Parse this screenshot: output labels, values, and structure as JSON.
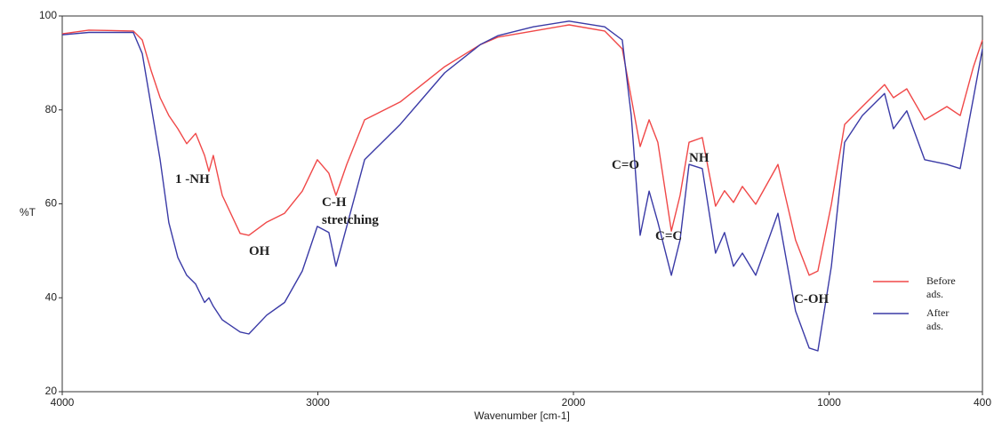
{
  "chart_data": {
    "type": "line",
    "x_label": "Wavenumber [cm-1]",
    "y_label": "%T",
    "x": [
      4000,
      3896,
      3722,
      3687,
      3652,
      3617,
      3583,
      3548,
      3513,
      3478,
      3443,
      3426,
      3409,
      3374,
      3304,
      3270,
      3200,
      3130,
      3061,
      3002,
      2957,
      2929,
      2887,
      2817,
      2678,
      2504,
      2365,
      2296,
      2157,
      2017,
      1878,
      1809,
      1774,
      1739,
      1704,
      1670,
      1617,
      1583,
      1548,
      1496,
      1444,
      1409,
      1374,
      1339,
      1287,
      1200,
      1131,
      1078,
      1044,
      991,
      939,
      870,
      783,
      748,
      696,
      626,
      539,
      487,
      435,
      400
    ],
    "series": [
      {
        "name": "Before ads.",
        "color": "#f04848",
        "values": [
          96.2,
          97,
          96.8,
          94.9,
          88.3,
          82.6,
          78.8,
          76,
          72.8,
          75,
          70.3,
          66.9,
          70.3,
          61.8,
          53.7,
          53.3,
          56.1,
          58,
          62.7,
          69.4,
          66.5,
          61.8,
          68.4,
          77.9,
          81.7,
          89.2,
          93.9,
          95.5,
          96.8,
          98.1,
          96.8,
          93,
          82.6,
          72.2,
          77.9,
          73.1,
          54.2,
          61.8,
          73.1,
          74.1,
          59.5,
          62.8,
          60.3,
          63.7,
          59.9,
          68.4,
          52.3,
          44.8,
          45.7,
          59.9,
          76.9,
          80.7,
          85.4,
          82.6,
          84.5,
          77.9,
          80.7,
          78.8,
          89.2,
          94.9
        ]
      },
      {
        "name": "After ads.",
        "color": "#3a3aa6",
        "values": [
          96,
          96.5,
          96.5,
          92,
          80.7,
          69.4,
          56,
          48.6,
          44.8,
          42.9,
          39,
          40,
          38.2,
          35.3,
          32.7,
          32.3,
          36.3,
          39,
          45.7,
          55.2,
          53.9,
          46.7,
          55.2,
          69.4,
          76.9,
          87.9,
          93.9,
          95.8,
          97.7,
          98.9,
          97.7,
          94.9,
          78.8,
          53.3,
          62.7,
          56.1,
          44.8,
          52.3,
          68.4,
          67.5,
          49.5,
          53.9,
          46.7,
          49.5,
          44.8,
          58,
          37.2,
          29.3,
          28.7,
          46.7,
          73.1,
          78.8,
          83.5,
          76,
          79.8,
          69.4,
          68.4,
          67.5,
          82.6,
          93
        ]
      }
    ],
    "xlim": [
      4000,
      400
    ],
    "xticks": [
      4000,
      3000,
      2000,
      1000,
      400
    ],
    "ylim": [
      20,
      100
    ],
    "yticks": [
      20,
      40,
      60,
      80,
      100
    ],
    "grid": false,
    "legend": "right",
    "annotations": [
      "1 -NH",
      "OH",
      "C-H stretching",
      "C=O",
      "C=C",
      "NH",
      "C-OH"
    ]
  }
}
